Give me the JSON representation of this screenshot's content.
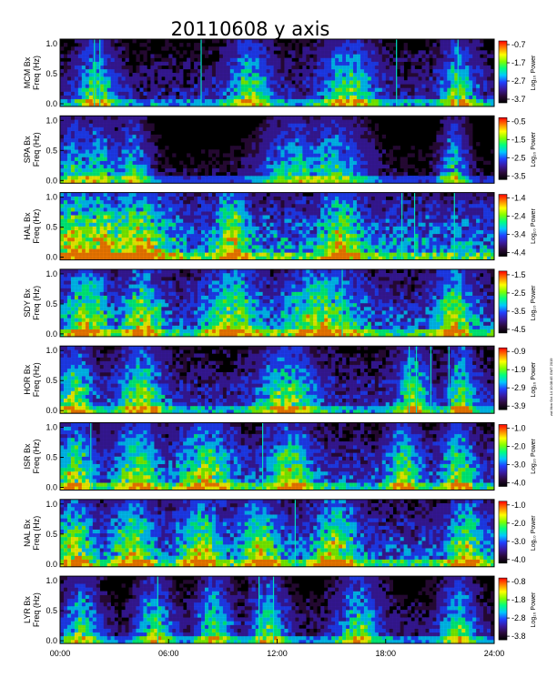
{
  "chart_data": {
    "type": "heatmap",
    "title": "20110608 y axis",
    "x_tick_labels": [
      "00:00",
      "06:00",
      "12:00",
      "18:00",
      "24:00"
    ],
    "xlim_hours": [
      0,
      24
    ],
    "y_tick_labels": [
      "0.0",
      "0.5",
      "1.0"
    ],
    "ylim": [
      0,
      1.0
    ],
    "y_label_line2": "Freq (Hz)",
    "colorbar_label": "Log₁₀ Power",
    "colormap": [
      "#000000",
      "#2a0a3a",
      "#3a1aa0",
      "#2040ff",
      "#00c8ff",
      "#00ff80",
      "#80ff00",
      "#ffff00",
      "#ff8000",
      "#ff0000"
    ],
    "stamp": "zxt Mon Oct 14 10:08:45 GMT 2019",
    "panels": [
      {
        "station": "MCM Bx",
        "cb_ticks": [
          "-0.7",
          "-1.7",
          "-2.7",
          "-3.7"
        ],
        "level": 0.35,
        "lines": [
          1.9,
          2.2,
          7.8,
          18.6,
          22.0
        ],
        "bursts": [
          [
            2.0,
            1.0
          ],
          [
            10.5,
            1.2
          ],
          [
            16.0,
            1.5
          ],
          [
            22.0,
            1.0
          ]
        ]
      },
      {
        "station": "SPA Bx",
        "cb_ticks": [
          "-0.5",
          "-1.5",
          "-2.5",
          "-3.5"
        ],
        "level": 0.22,
        "lines": [],
        "bursts": [
          [
            0.7,
            1.0
          ],
          [
            2.0,
            1.5
          ],
          [
            4.0,
            1.0
          ],
          [
            13.0,
            2.0
          ],
          [
            15.0,
            2.0
          ],
          [
            21.8,
            0.8
          ]
        ]
      },
      {
        "station": "HAL Bx",
        "cb_ticks": [
          "-1.4",
          "-2.4",
          "-3.4",
          "-4.4"
        ],
        "level": 0.6,
        "lines": [
          18.9,
          19.6,
          21.8
        ],
        "bursts": [
          [
            0.8,
            1.5
          ],
          [
            2.3,
            1.2
          ],
          [
            4.3,
            1.6
          ],
          [
            9.5,
            0.8
          ],
          [
            15.5,
            1.0
          ]
        ]
      },
      {
        "station": "SDY Bx",
        "cb_ticks": [
          "-1.5",
          "-2.5",
          "-3.5",
          "-4.5"
        ],
        "level": 0.5,
        "lines": [
          15.6
        ],
        "bursts": [
          [
            1.5,
            1.2
          ],
          [
            4.5,
            1.0
          ],
          [
            9.5,
            1.5
          ],
          [
            14.5,
            2.0
          ],
          [
            21.8,
            1.0
          ]
        ]
      },
      {
        "station": "HOR Bx",
        "cb_ticks": [
          "-0.9",
          "-1.9",
          "-2.9",
          "-3.9"
        ],
        "level": 0.4,
        "lines": [
          19.3,
          19.7,
          20.5,
          21.5
        ],
        "bursts": [
          [
            0.8,
            1.0
          ],
          [
            4.5,
            1.2
          ],
          [
            12.5,
            1.5
          ],
          [
            19.5,
            0.8
          ],
          [
            22.2,
            0.7
          ]
        ]
      },
      {
        "station": "ISR Bx",
        "cb_ticks": [
          "-1.0",
          "-2.0",
          "-3.0",
          "-4.0"
        ],
        "level": 0.45,
        "lines": [
          1.7,
          11.2
        ],
        "bursts": [
          [
            0.8,
            1.0
          ],
          [
            4.3,
            1.2
          ],
          [
            8.0,
            1.5
          ],
          [
            12.7,
            1.2
          ],
          [
            19.0,
            0.8
          ],
          [
            22.0,
            0.8
          ]
        ]
      },
      {
        "station": "NAL Bx",
        "cb_ticks": [
          "-1.0",
          "-2.0",
          "-3.0",
          "-4.0"
        ],
        "level": 0.5,
        "lines": [
          13.0
        ],
        "bursts": [
          [
            0.8,
            1.0
          ],
          [
            4.0,
            1.2
          ],
          [
            7.8,
            1.2
          ],
          [
            11.0,
            1.2
          ],
          [
            15.2,
            1.2
          ],
          [
            22.5,
            1.0
          ]
        ]
      },
      {
        "station": "LYR Bx",
        "cb_ticks": [
          "-0.8",
          "-1.8",
          "-2.8",
          "-3.8"
        ],
        "level": 0.3,
        "lines": [
          5.4,
          11.0,
          11.8
        ],
        "bursts": [
          [
            1.2,
            1.0
          ],
          [
            5.2,
            1.0
          ],
          [
            8.5,
            1.0
          ],
          [
            11.5,
            1.0
          ],
          [
            16.5,
            1.2
          ],
          [
            22.0,
            1.0
          ]
        ]
      }
    ]
  }
}
